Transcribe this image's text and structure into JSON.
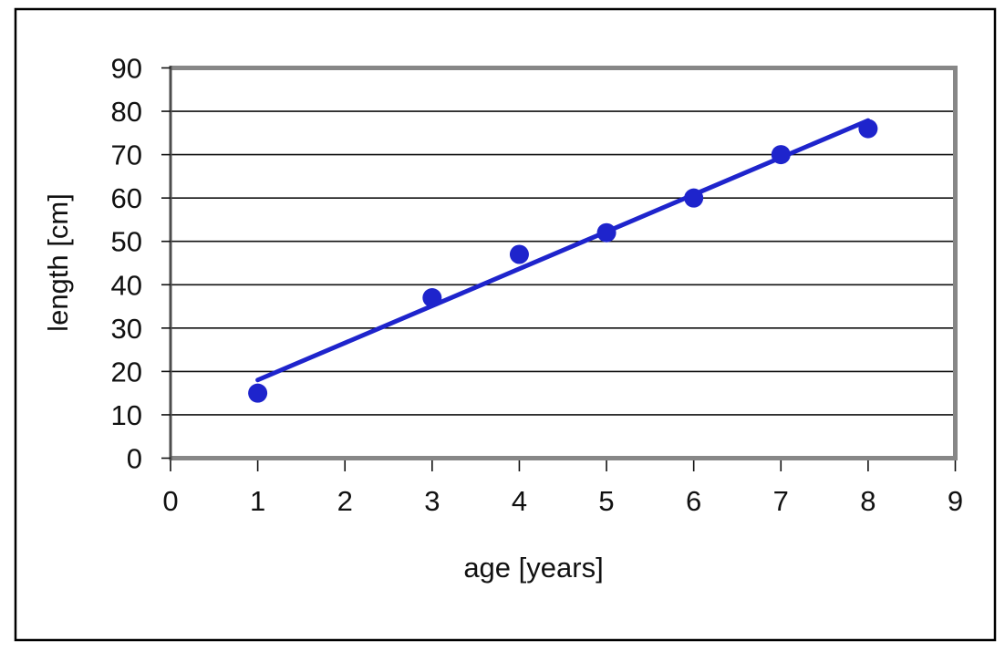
{
  "chart_data": {
    "type": "scatter",
    "title": "",
    "xlabel": "age [years]",
    "ylabel": "length [cm]",
    "x": [
      1,
      3,
      4,
      5,
      6,
      7,
      8
    ],
    "y": [
      15,
      37,
      47,
      52,
      60,
      70,
      76
    ],
    "points": [
      [
        1,
        15
      ],
      [
        3,
        37
      ],
      [
        4,
        47
      ],
      [
        5,
        52
      ],
      [
        6,
        60
      ],
      [
        7,
        70
      ],
      [
        8,
        76
      ]
    ],
    "trendline": {
      "type": "linear",
      "slope": 8.55,
      "intercept": 9.48,
      "x_start": 1,
      "x_end": 8
    },
    "xlim": [
      0,
      9
    ],
    "ylim": [
      0,
      90
    ],
    "x_ticks": [
      0,
      1,
      2,
      3,
      4,
      5,
      6,
      7,
      8,
      9
    ],
    "y_ticks": [
      0,
      10,
      20,
      30,
      40,
      50,
      60,
      70,
      80,
      90
    ],
    "grid": "horizontal",
    "legend": "none",
    "colors": {
      "marker": "#1E24CC",
      "trend_line": "#1E24CC",
      "gridline": "#111111",
      "tick": "#111111",
      "axis_line": "#4D4D4D",
      "plot_border": "#878787",
      "outer_border": "#000000",
      "background": "#FFFFFF",
      "text": "#111111"
    }
  }
}
